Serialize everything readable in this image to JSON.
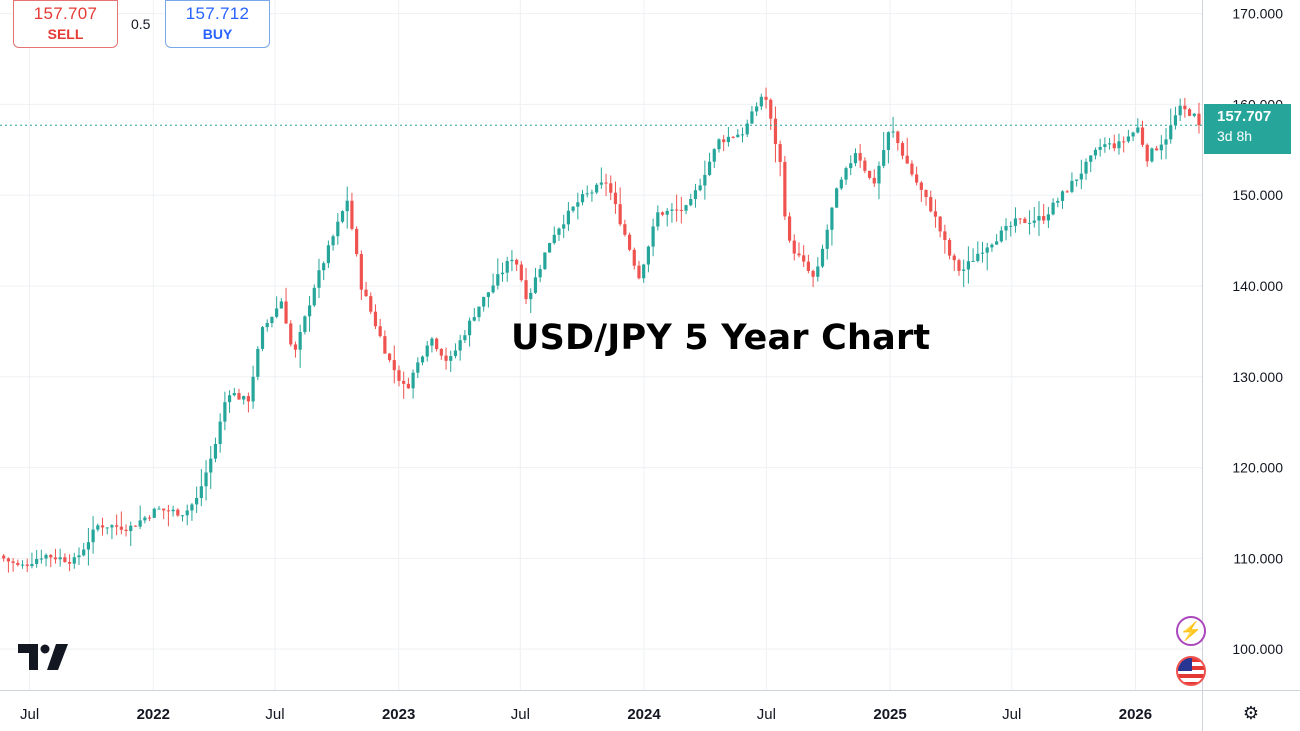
{
  "chart_data": {
    "type": "candlestick",
    "title": "USD/JPY 5 Year Chart",
    "y_axis": {
      "position": "right",
      "ylim": [
        95.5,
        171.5
      ],
      "ticks": [
        "100.000",
        "110.000",
        "120.000",
        "130.000",
        "140.000",
        "150.000",
        "160.000",
        "170.000"
      ],
      "tick_values": [
        100,
        110,
        120,
        130,
        140,
        150,
        160,
        170
      ]
    },
    "x_axis": {
      "xlim": [
        "2021-05-18",
        "2026-04-10"
      ],
      "ticks": [
        {
          "label": "Jul",
          "date": "2021-07-01"
        },
        {
          "label": "2022",
          "date": "2022-01-01"
        },
        {
          "label": "Jul",
          "date": "2022-07-01"
        },
        {
          "label": "2023",
          "date": "2023-01-01"
        },
        {
          "label": "Jul",
          "date": "2023-07-01"
        },
        {
          "label": "2024",
          "date": "2024-01-01"
        },
        {
          "label": "Jul",
          "date": "2024-07-01"
        },
        {
          "label": "2025",
          "date": "2025-01-01"
        },
        {
          "label": "Jul",
          "date": "2025-07-01"
        },
        {
          "label": "2026",
          "date": "2026-01-01"
        }
      ]
    },
    "grid": true,
    "colors": {
      "up": "#26a69a",
      "down": "#ef5350"
    },
    "current_price": 157.707,
    "current_price_label": "157.707",
    "countdown": "3d 8h",
    "close_path": [
      [
        "2021-05-20",
        110.3
      ],
      [
        "2021-06-20",
        109.0
      ],
      [
        "2021-07-25",
        110.4
      ],
      [
        "2021-09-10",
        109.7
      ],
      [
        "2021-10-15",
        113.7
      ],
      [
        "2021-12-01",
        113.4
      ],
      [
        "2022-01-10",
        115.4
      ],
      [
        "2022-02-20",
        115.0
      ],
      [
        "2022-03-10",
        116.5
      ],
      [
        "2022-04-05",
        122.0
      ],
      [
        "2022-04-25",
        128.5
      ],
      [
        "2022-05-25",
        127.2
      ],
      [
        "2022-06-15",
        135.0
      ],
      [
        "2022-07-15",
        138.5
      ],
      [
        "2022-08-01",
        132.0
      ],
      [
        "2022-09-01",
        140.0
      ],
      [
        "2022-10-20",
        149.5
      ],
      [
        "2022-11-10",
        140.0
      ],
      [
        "2022-12-20",
        132.0
      ],
      [
        "2023-01-15",
        128.5
      ],
      [
        "2023-02-20",
        134.5
      ],
      [
        "2023-03-20",
        131.5
      ],
      [
        "2023-05-01",
        137.5
      ],
      [
        "2023-06-25",
        143.5
      ],
      [
        "2023-07-15",
        138.5
      ],
      [
        "2023-08-20",
        145.5
      ],
      [
        "2023-10-01",
        149.5
      ],
      [
        "2023-11-10",
        151.5
      ],
      [
        "2023-12-01",
        147.0
      ],
      [
        "2023-12-28",
        141.0
      ],
      [
        "2024-01-25",
        148.0
      ],
      [
        "2024-03-10",
        148.5
      ],
      [
        "2024-04-25",
        156.0
      ],
      [
        "2024-06-01",
        157.0
      ],
      [
        "2024-07-01",
        161.5
      ],
      [
        "2024-07-25",
        153.5
      ],
      [
        "2024-08-05",
        145.0
      ],
      [
        "2024-09-15",
        140.5
      ],
      [
        "2024-10-15",
        150.0
      ],
      [
        "2024-11-15",
        155.0
      ],
      [
        "2024-12-10",
        151.0
      ],
      [
        "2025-01-05",
        157.5
      ],
      [
        "2025-02-05",
        152.5
      ],
      [
        "2025-03-10",
        148.0
      ],
      [
        "2025-04-05",
        143.0
      ],
      [
        "2025-04-20",
        141.5
      ],
      [
        "2025-05-20",
        144.0
      ],
      [
        "2025-07-10",
        147.0
      ],
      [
        "2025-08-20",
        147.5
      ],
      [
        "2025-10-10",
        152.0
      ],
      [
        "2025-11-15",
        155.5
      ],
      [
        "2025-12-10",
        155.5
      ],
      [
        "2026-01-10",
        157.5
      ],
      [
        "2026-01-20",
        154.0
      ],
      [
        "2026-02-20",
        156.5
      ],
      [
        "2026-03-10",
        159.5
      ],
      [
        "2026-03-31",
        159.0
      ],
      [
        "2026-04-07",
        157.707
      ]
    ]
  },
  "header": {
    "sell": {
      "price": "157.707",
      "label": "SELL"
    },
    "buy": {
      "price": "157.712",
      "label": "BUY"
    },
    "spread": "0.5"
  },
  "icons": {
    "logo": "tradingview-logo-icon",
    "bolt": "lightning-icon",
    "flag": "us-flag-icon",
    "settings": "settings-icon"
  }
}
